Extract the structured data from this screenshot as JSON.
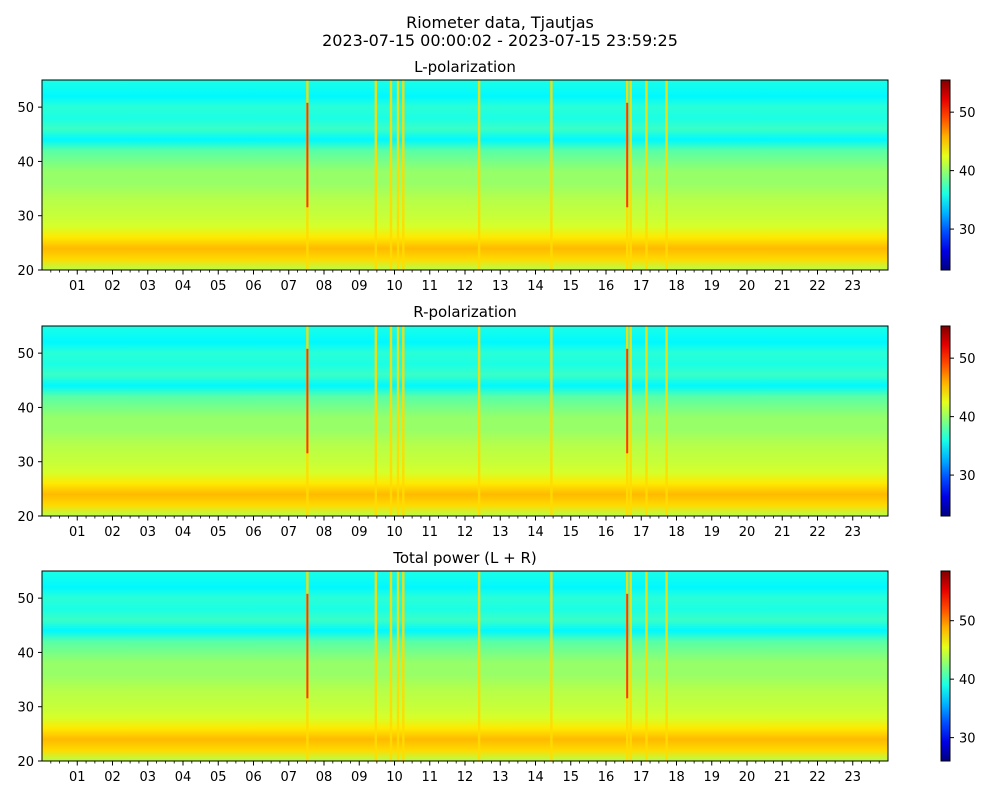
{
  "figure": {
    "title_line1": "Riometer data, Tjautjas",
    "title_line2": "2023-07-15 00:00:02 - 2023-07-15 23:59:25"
  },
  "chart_data": [
    {
      "type": "heatmap",
      "title": "L-polarization",
      "xlabel": "",
      "ylabel": "",
      "x_ticks": [
        "01",
        "02",
        "03",
        "04",
        "05",
        "06",
        "07",
        "08",
        "09",
        "10",
        "11",
        "12",
        "13",
        "14",
        "15",
        "16",
        "17",
        "18",
        "19",
        "20",
        "21",
        "22",
        "23"
      ],
      "xlim_hours": [
        0,
        24
      ],
      "y_ticks": [
        20,
        30,
        40,
        50
      ],
      "ylim": [
        20,
        55
      ],
      "colormap": "jet",
      "colorbar": {
        "ticks": [
          30,
          40,
          50
        ],
        "range": [
          23,
          55.5
        ]
      },
      "band_profile": {
        "y": [
          20,
          22,
          24,
          26,
          28,
          30,
          33,
          36,
          38,
          40,
          42,
          44,
          46,
          48,
          50,
          52,
          55
        ],
        "value": [
          41,
          44.5,
          45.5,
          44,
          42,
          41.5,
          41,
          40,
          40,
          39,
          38,
          35,
          37,
          36,
          36.5,
          35,
          36
        ]
      },
      "spikes_hours": [
        7.53,
        9.47,
        9.9,
        10.1,
        10.25,
        12.4,
        14.45,
        16.6,
        16.7,
        17.15,
        17.72
      ]
    },
    {
      "type": "heatmap",
      "title": "R-polarization",
      "xlabel": "",
      "ylabel": "",
      "x_ticks": [
        "01",
        "02",
        "03",
        "04",
        "05",
        "06",
        "07",
        "08",
        "09",
        "10",
        "11",
        "12",
        "13",
        "14",
        "15",
        "16",
        "17",
        "18",
        "19",
        "20",
        "21",
        "22",
        "23"
      ],
      "xlim_hours": [
        0,
        24
      ],
      "y_ticks": [
        20,
        30,
        40,
        50
      ],
      "ylim": [
        20,
        55
      ],
      "colormap": "jet",
      "colorbar": {
        "ticks": [
          30,
          40,
          50
        ],
        "range": [
          23,
          55.5
        ]
      },
      "band_profile": {
        "y": [
          20,
          22,
          24,
          26,
          28,
          30,
          33,
          36,
          38,
          40,
          42,
          44,
          46,
          48,
          50,
          52,
          55
        ],
        "value": [
          41,
          44.5,
          45.5,
          44,
          42,
          41.5,
          41,
          40,
          40,
          39,
          38,
          35,
          37,
          36,
          36.5,
          35,
          36
        ]
      },
      "spikes_hours": [
        7.53,
        9.47,
        9.9,
        10.1,
        10.25,
        12.4,
        14.45,
        16.6,
        16.7,
        17.15,
        17.72
      ]
    },
    {
      "type": "heatmap",
      "title": "Total power (L + R)",
      "xlabel": "",
      "ylabel": "",
      "x_ticks": [
        "01",
        "02",
        "03",
        "04",
        "05",
        "06",
        "07",
        "08",
        "09",
        "10",
        "11",
        "12",
        "13",
        "14",
        "15",
        "16",
        "17",
        "18",
        "19",
        "20",
        "21",
        "22",
        "23"
      ],
      "xlim_hours": [
        0,
        24
      ],
      "y_ticks": [
        20,
        30,
        40,
        50
      ],
      "ylim": [
        20,
        55
      ],
      "colormap": "jet",
      "colorbar": {
        "ticks": [
          30,
          40,
          50
        ],
        "range": [
          26,
          58.5
        ]
      },
      "band_profile": {
        "y": [
          20,
          22,
          24,
          26,
          28,
          30,
          33,
          36,
          38,
          40,
          42,
          44,
          46,
          48,
          50,
          52,
          55
        ],
        "value": [
          44,
          47.5,
          48.5,
          47,
          45,
          44.5,
          44,
          43,
          43,
          42,
          41,
          38,
          40,
          39,
          39.5,
          38,
          39
        ]
      },
      "spikes_hours": [
        7.53,
        9.47,
        9.9,
        10.1,
        10.25,
        12.4,
        14.45,
        16.6,
        16.7,
        17.15,
        17.72
      ]
    }
  ]
}
